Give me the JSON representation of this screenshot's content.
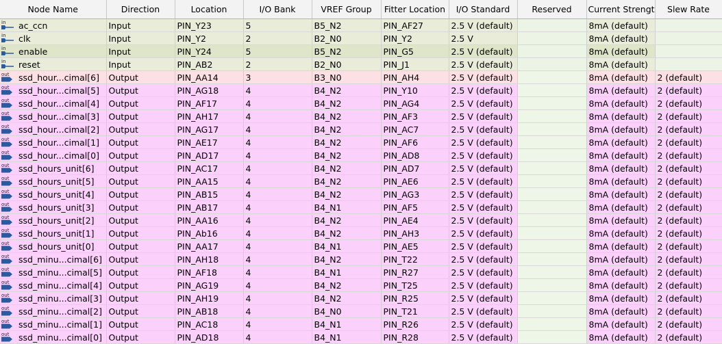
{
  "columns": [
    "Node Name",
    "Direction",
    "Location",
    "I/O Bank",
    "VREF Group",
    "Fitter Location",
    "I/O Standard",
    "Reserved",
    "Current Strength",
    "Slew Rate"
  ],
  "colors": {
    "input_row": "#e8ecd8",
    "output_row": "#fbd0fb",
    "selected_row": "#fde0e4",
    "pin_icon": "#2a5aa0"
  },
  "rows": [
    {
      "icon": "in",
      "name": "ac_ccn",
      "direction": "Input",
      "location": "PIN_Y23",
      "bank": "5",
      "vref": "B5_N2",
      "fitter": "PIN_AF27",
      "standard": "2.5 V (default)",
      "reserved": "",
      "current": "8mA (default)",
      "slew": ""
    },
    {
      "icon": "in",
      "name": "clk",
      "direction": "Input",
      "location": "PIN_Y2",
      "bank": "2",
      "vref": "B2_N0",
      "fitter": "PIN_Y2",
      "standard": "2.5 V",
      "reserved": "",
      "current": "8mA (default)",
      "slew": ""
    },
    {
      "icon": "in",
      "name": "enable",
      "direction": "Input",
      "location": "PIN_Y24",
      "bank": "5",
      "vref": "B5_N2",
      "fitter": "PIN_G5",
      "standard": "2.5 V (default)",
      "reserved": "",
      "current": "8mA (default)",
      "slew": ""
    },
    {
      "icon": "in",
      "name": "reset",
      "direction": "Input",
      "location": "PIN_AB2",
      "bank": "2",
      "vref": "B2_N0",
      "fitter": "PIN_J1",
      "standard": "2.5 V (default)",
      "reserved": "",
      "current": "8mA (default)",
      "slew": ""
    },
    {
      "icon": "out",
      "name": "ssd_hour...cimal[6]",
      "direction": "Output",
      "location": "PIN_AA14",
      "bank": "3",
      "vref": "B3_N0",
      "fitter": "PIN_AH4",
      "standard": "2.5 V (default)",
      "reserved": "",
      "current": "8mA (default)",
      "slew": "2 (default)"
    },
    {
      "icon": "out",
      "name": "ssd_hour...cimal[5]",
      "direction": "Output",
      "location": "PIN_AG18",
      "bank": "4",
      "vref": "B4_N2",
      "fitter": "PIN_Y10",
      "standard": "2.5 V (default)",
      "reserved": "",
      "current": "8mA (default)",
      "slew": "2 (default)"
    },
    {
      "icon": "out",
      "name": "ssd_hour...cimal[4]",
      "direction": "Output",
      "location": "PIN_AF17",
      "bank": "4",
      "vref": "B4_N2",
      "fitter": "PIN_AG4",
      "standard": "2.5 V (default)",
      "reserved": "",
      "current": "8mA (default)",
      "slew": "2 (default)"
    },
    {
      "icon": "out",
      "name": "ssd_hour...cimal[3]",
      "direction": "Output",
      "location": "PIN_AH17",
      "bank": "4",
      "vref": "B4_N2",
      "fitter": "PIN_AF3",
      "standard": "2.5 V (default)",
      "reserved": "",
      "current": "8mA (default)",
      "slew": "2 (default)"
    },
    {
      "icon": "out",
      "name": "ssd_hour...cimal[2]",
      "direction": "Output",
      "location": "PIN_AG17",
      "bank": "4",
      "vref": "B4_N2",
      "fitter": "PIN_AC7",
      "standard": "2.5 V (default)",
      "reserved": "",
      "current": "8mA (default)",
      "slew": "2 (default)"
    },
    {
      "icon": "out",
      "name": "ssd_hour...cimal[1]",
      "direction": "Output",
      "location": "PIN_AE17",
      "bank": "4",
      "vref": "B4_N2",
      "fitter": "PIN_AF6",
      "standard": "2.5 V (default)",
      "reserved": "",
      "current": "8mA (default)",
      "slew": "2 (default)"
    },
    {
      "icon": "out",
      "name": "ssd_hour...cimal[0]",
      "direction": "Output",
      "location": "PIN_AD17",
      "bank": "4",
      "vref": "B4_N2",
      "fitter": "PIN_AD8",
      "standard": "2.5 V (default)",
      "reserved": "",
      "current": "8mA (default)",
      "slew": "2 (default)"
    },
    {
      "icon": "out",
      "name": "ssd_hours_unit[6]",
      "direction": "Output",
      "location": "PIN_AC17",
      "bank": "4",
      "vref": "B4_N2",
      "fitter": "PIN_AD7",
      "standard": "2.5 V (default)",
      "reserved": "",
      "current": "8mA (default)",
      "slew": "2 (default)"
    },
    {
      "icon": "out",
      "name": "ssd_hours_unit[5]",
      "direction": "Output",
      "location": "PIN_AA15",
      "bank": "4",
      "vref": "B4_N2",
      "fitter": "PIN_AE6",
      "standard": "2.5 V (default)",
      "reserved": "",
      "current": "8mA (default)",
      "slew": "2 (default)"
    },
    {
      "icon": "out",
      "name": "ssd_hours_unit[4]",
      "direction": "Output",
      "location": "PIN_AB15",
      "bank": "4",
      "vref": "B4_N2",
      "fitter": "PIN_AG3",
      "standard": "2.5 V (default)",
      "reserved": "",
      "current": "8mA (default)",
      "slew": "2 (default)"
    },
    {
      "icon": "out",
      "name": "ssd_hours_unit[3]",
      "direction": "Output",
      "location": "PIN_AB17",
      "bank": "4",
      "vref": "B4_N1",
      "fitter": "PIN_AF5",
      "standard": "2.5 V (default)",
      "reserved": "",
      "current": "8mA (default)",
      "slew": "2 (default)"
    },
    {
      "icon": "out",
      "name": "ssd_hours_unit[2]",
      "direction": "Output",
      "location": "PIN_AA16",
      "bank": "4",
      "vref": "B4_N2",
      "fitter": "PIN_AE4",
      "standard": "2.5 V (default)",
      "reserved": "",
      "current": "8mA (default)",
      "slew": "2 (default)"
    },
    {
      "icon": "out",
      "name": "ssd_hours_unit[1]",
      "direction": "Output",
      "location": "PIN_Ab16",
      "bank": "4",
      "vref": "B4_N2",
      "fitter": "PIN_AH3",
      "standard": "2.5 V (default)",
      "reserved": "",
      "current": "8mA (default)",
      "slew": "2 (default)"
    },
    {
      "icon": "out",
      "name": "ssd_hours_unit[0]",
      "direction": "Output",
      "location": "PIN_AA17",
      "bank": "4",
      "vref": "B4_N1",
      "fitter": "PIN_AE5",
      "standard": "2.5 V (default)",
      "reserved": "",
      "current": "8mA (default)",
      "slew": "2 (default)"
    },
    {
      "icon": "out",
      "name": "ssd_minu...cimal[6]",
      "direction": "Output",
      "location": "PIN_AH18",
      "bank": "4",
      "vref": "B4_N2",
      "fitter": "PIN_T22",
      "standard": "2.5 V (default)",
      "reserved": "",
      "current": "8mA (default)",
      "slew": "2 (default)"
    },
    {
      "icon": "out",
      "name": "ssd_minu...cimal[5]",
      "direction": "Output",
      "location": "PIN_AF18",
      "bank": "4",
      "vref": "B4_N1",
      "fitter": "PIN_R27",
      "standard": "2.5 V (default)",
      "reserved": "",
      "current": "8mA (default)",
      "slew": "2 (default)"
    },
    {
      "icon": "out",
      "name": "ssd_minu...cimal[4]",
      "direction": "Output",
      "location": "PIN_AG19",
      "bank": "4",
      "vref": "B4_N2",
      "fitter": "PIN_T25",
      "standard": "2.5 V (default)",
      "reserved": "",
      "current": "8mA (default)",
      "slew": "2 (default)"
    },
    {
      "icon": "out",
      "name": "ssd_minu...cimal[3]",
      "direction": "Output",
      "location": "PIN_AH19",
      "bank": "4",
      "vref": "B4_N2",
      "fitter": "PIN_R25",
      "standard": "2.5 V (default)",
      "reserved": "",
      "current": "8mA (default)",
      "slew": "2 (default)"
    },
    {
      "icon": "out",
      "name": "ssd_minu...cimal[2]",
      "direction": "Output",
      "location": "PIN_AB18",
      "bank": "4",
      "vref": "B4_N0",
      "fitter": "PIN_T21",
      "standard": "2.5 V (default)",
      "reserved": "",
      "current": "8mA (default)",
      "slew": "2 (default)"
    },
    {
      "icon": "out",
      "name": "ssd_minu...cimal[1]",
      "direction": "Output",
      "location": "PIN_AC18",
      "bank": "4",
      "vref": "B4_N1",
      "fitter": "PIN_R26",
      "standard": "2.5 V (default)",
      "reserved": "",
      "current": "8mA (default)",
      "slew": "2 (default)"
    },
    {
      "icon": "out",
      "name": "ssd_minu...cimal[0]",
      "direction": "Output",
      "location": "PIN_AD18",
      "bank": "4",
      "vref": "B4_N1",
      "fitter": "PIN_R28",
      "standard": "2.5 V (default)",
      "reserved": "",
      "current": "8mA (default)",
      "slew": "2 (default)"
    }
  ]
}
